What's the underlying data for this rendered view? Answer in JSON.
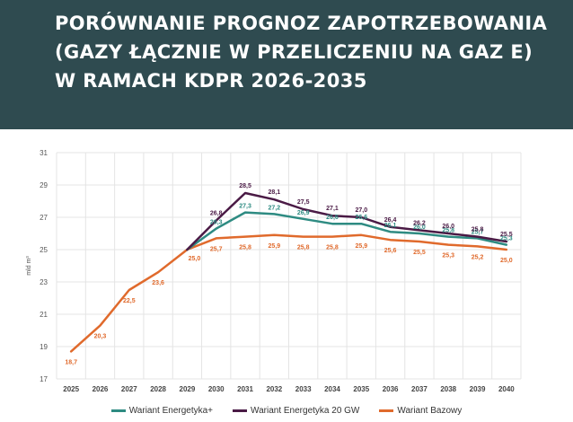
{
  "header": {
    "title_lines": [
      "PORÓWNANIE PROGNOZ ZAPOTRZEBOWANIA",
      "(GAZY ŁĄCZNIE W PRZELICZENIU NA GAZ E)",
      "W RAMACH KDPR 2026-2035"
    ],
    "background": "#2f4b50"
  },
  "chart_data": {
    "type": "line",
    "title": "",
    "xlabel": "",
    "ylabel": "mld m³",
    "ylim": [
      17,
      31
    ],
    "yticks": [
      17,
      19,
      21,
      23,
      25,
      27,
      29,
      31
    ],
    "grid": true,
    "legend_position": "bottom",
    "x": [
      "2025",
      "2026",
      "2027",
      "2028",
      "2029",
      "2030",
      "2031",
      "2032",
      "2033",
      "2034",
      "2035",
      "2036",
      "2037",
      "2038",
      "2039",
      "2040"
    ],
    "series": [
      {
        "name": "Wariant Bazowy",
        "color": "#e06a2c",
        "values": [
          18.7,
          20.3,
          22.5,
          23.6,
          25.0,
          25.7,
          25.8,
          25.9,
          25.8,
          25.8,
          25.9,
          25.6,
          25.5,
          25.3,
          25.2,
          25.0
        ],
        "labels": [
          "18,7",
          "20,3",
          "22,5",
          "23,6",
          "25,0",
          "25,7",
          "25,8",
          "25,9",
          "25,8",
          "25,8",
          "25,9",
          "25,6",
          "25,5",
          "25,3",
          "25,2",
          "25,0"
        ]
      },
      {
        "name": "Wariant Energetyka+",
        "color": "#2e8b82",
        "values": [
          null,
          null,
          null,
          null,
          25.0,
          26.3,
          27.3,
          27.2,
          26.9,
          26.6,
          26.6,
          26.1,
          26.0,
          25.8,
          25.7,
          25.3
        ],
        "labels": [
          null,
          null,
          null,
          null,
          null,
          "26,3",
          "27,3",
          "27,2",
          "26,9",
          "26,6",
          "26,6",
          "26,1",
          "26,0",
          "25,8",
          "25,7",
          "25,3"
        ]
      },
      {
        "name": "Wariant Energetyka 20 GW",
        "color": "#4a1a45",
        "values": [
          null,
          null,
          null,
          null,
          25.0,
          26.8,
          28.5,
          28.1,
          27.5,
          27.1,
          27.0,
          26.4,
          26.2,
          26.0,
          25.8,
          25.5
        ],
        "labels": [
          null,
          null,
          null,
          null,
          null,
          "26,8",
          "28,5",
          "28,1",
          "27,5",
          "27,1",
          "27,0",
          "26,4",
          "26,2",
          "26,0",
          "25,8",
          "25,5"
        ]
      }
    ],
    "legend": [
      "Wariant Energetyka+",
      "Wariant Energetyka 20 GW",
      "Wariant Bazowy"
    ]
  }
}
